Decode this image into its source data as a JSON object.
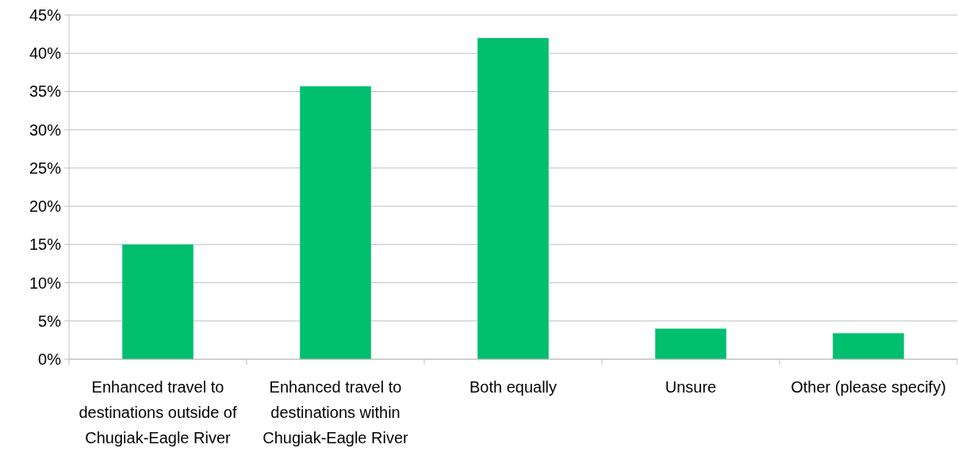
{
  "chart_data": {
    "type": "bar",
    "categories": [
      "Enhanced travel to destinations outside of Chugiak-Eagle River",
      "Enhanced travel to destinations within Chugiak-Eagle River",
      "Both equally",
      "Unsure",
      "Other (please specify)"
    ],
    "values": [
      15.0,
      35.7,
      42.0,
      4.0,
      3.4
    ],
    "color": "#00bf6f",
    "ylim": [
      0,
      45
    ],
    "yticks": [
      {
        "value": 0,
        "label": "0%"
      },
      {
        "value": 5,
        "label": "5%"
      },
      {
        "value": 10,
        "label": "10%"
      },
      {
        "value": 15,
        "label": "15%"
      },
      {
        "value": 20,
        "label": "20%"
      },
      {
        "value": 25,
        "label": "25%"
      },
      {
        "value": 30,
        "label": "30%"
      },
      {
        "value": 35,
        "label": "35%"
      },
      {
        "value": 40,
        "label": "40%"
      },
      {
        "value": 45,
        "label": "45%"
      }
    ],
    "grid": "y"
  }
}
